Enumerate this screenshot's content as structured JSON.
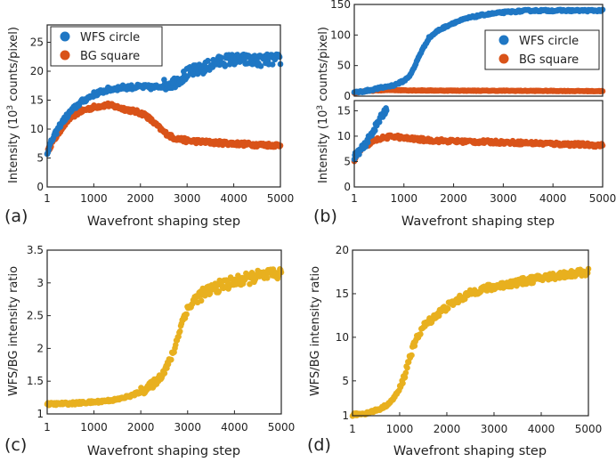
{
  "chart_data": [
    {
      "type": "scatter",
      "panel_label": "(a)",
      "xlabel": "Wavefront shaping step",
      "ylabel_prefix": "Intensity (10",
      "ylabel_sup": "3",
      "ylabel_suffix": " counts/pixel)",
      "xlim": [
        1,
        5000
      ],
      "ylim": [
        0,
        28
      ],
      "xticks": [
        "1",
        "1000",
        "2000",
        "3000",
        "4000",
        "5000"
      ],
      "yticks": [
        "0",
        "5",
        "10",
        "15",
        "20",
        "25"
      ],
      "legend_position": "top-left",
      "series": [
        {
          "name": "WFS circle",
          "color": "#1f77c4",
          "x": [
            1,
            100,
            300,
            500,
            700,
            1000,
            1300,
            1600,
            2000,
            2300,
            2500,
            2700,
            2900,
            3100,
            3300,
            3600,
            3900,
            4200,
            4500,
            4800,
            5000
          ],
          "y": [
            6,
            8,
            11,
            13,
            14.5,
            16,
            16.8,
            17.2,
            17.3,
            17.2,
            17.6,
            18,
            19,
            20,
            20.3,
            21.5,
            22,
            22,
            21.8,
            22,
            22
          ]
        },
        {
          "name": "BG square",
          "color": "#d95319",
          "x": [
            1,
            100,
            300,
            500,
            700,
            1000,
            1300,
            1600,
            1900,
            2100,
            2300,
            2500,
            2700,
            3000,
            3500,
            4000,
            4500,
            5000
          ],
          "y": [
            6,
            7.5,
            10,
            12,
            13,
            13.8,
            14.2,
            13.6,
            13,
            12.5,
            11,
            9.5,
            8.5,
            8,
            7.7,
            7.5,
            7.3,
            7.2
          ]
        }
      ]
    },
    {
      "type": "scatter",
      "panel_label": "(b)",
      "xlabel": "Wavefront shaping step",
      "ylabel_prefix": "Intensity (10",
      "ylabel_sup": "3",
      "ylabel_suffix": " counts/pixel)",
      "xlim": [
        1,
        5000
      ],
      "ylim_top": [
        0,
        150
      ],
      "ylim_bottom": [
        0,
        17
      ],
      "xticks": [
        "1",
        "1000",
        "2000",
        "3000",
        "4000",
        "5000"
      ],
      "yticks_top": [
        "0",
        "50",
        "100",
        "150"
      ],
      "yticks_bottom": [
        "0",
        "5",
        "10",
        "15"
      ],
      "legend_position": "middle-right",
      "series": [
        {
          "name": "WFS circle",
          "color": "#1f77c4",
          "x": [
            1,
            200,
            500,
            800,
            1000,
            1100,
            1200,
            1300,
            1500,
            1700,
            2000,
            2300,
            2600,
            3000,
            3500,
            4000,
            4500,
            5000
          ],
          "y": [
            6,
            8,
            13,
            18,
            25,
            32,
            45,
            65,
            95,
            108,
            120,
            128,
            133,
            137,
            140,
            140,
            140,
            140
          ]
        },
        {
          "name": "BG square",
          "color": "#d95319",
          "x": [
            1,
            100,
            300,
            500,
            800,
            1000,
            1500,
            2000,
            3000,
            4000,
            5000
          ],
          "y": [
            5,
            7,
            8.5,
            9.5,
            10,
            9.6,
            9.2,
            9,
            8.8,
            8.5,
            8.2
          ]
        }
      ]
    },
    {
      "type": "scatter",
      "panel_label": "(c)",
      "xlabel": "Wavefront shaping step",
      "ylabel": "WFS/BG intensity ratio",
      "xlim": [
        1,
        5000
      ],
      "ylim": [
        1,
        3.5
      ],
      "xticks": [
        "1",
        "1000",
        "2000",
        "3000",
        "4000",
        "5000"
      ],
      "yticks": [
        "1",
        "1.5",
        "2",
        "2.5",
        "3",
        "3.5"
      ],
      "series": [
        {
          "name": "WFS/BG ratio",
          "color": "#e8b01f",
          "x": [
            1,
            500,
            1000,
            1500,
            1800,
            2000,
            2200,
            2400,
            2600,
            2700,
            2800,
            2900,
            3000,
            3200,
            3500,
            3800,
            4200,
            4500,
            4800,
            5000
          ],
          "y": [
            1.15,
            1.16,
            1.18,
            1.22,
            1.28,
            1.34,
            1.42,
            1.55,
            1.78,
            1.95,
            2.2,
            2.45,
            2.6,
            2.78,
            2.9,
            2.98,
            3.05,
            3.1,
            3.12,
            3.15
          ]
        }
      ]
    },
    {
      "type": "scatter",
      "panel_label": "(d)",
      "xlabel": "Wavefront shaping step",
      "ylabel": "WFS/BG intensity ratio",
      "xlim": [
        1,
        5000
      ],
      "ylim": [
        1,
        20
      ],
      "xticks": [
        "1",
        "1000",
        "2000",
        "3000",
        "4000",
        "5000"
      ],
      "yticks": [
        "1",
        "5",
        "10",
        "15",
        "20"
      ],
      "series": [
        {
          "name": "WFS/BG ratio",
          "color": "#e8b01f",
          "x": [
            1,
            300,
            600,
            800,
            1000,
            1100,
            1200,
            1300,
            1400,
            1500,
            1700,
            2000,
            2300,
            2600,
            3000,
            3500,
            4000,
            4500,
            5000
          ],
          "y": [
            1.1,
            1.3,
            1.8,
            2.5,
            4,
            5.5,
            7.5,
            9,
            10.3,
            11.2,
            12.2,
            13.5,
            14.5,
            15.3,
            15.8,
            16.3,
            16.8,
            17.2,
            17.5
          ]
        }
      ]
    }
  ]
}
